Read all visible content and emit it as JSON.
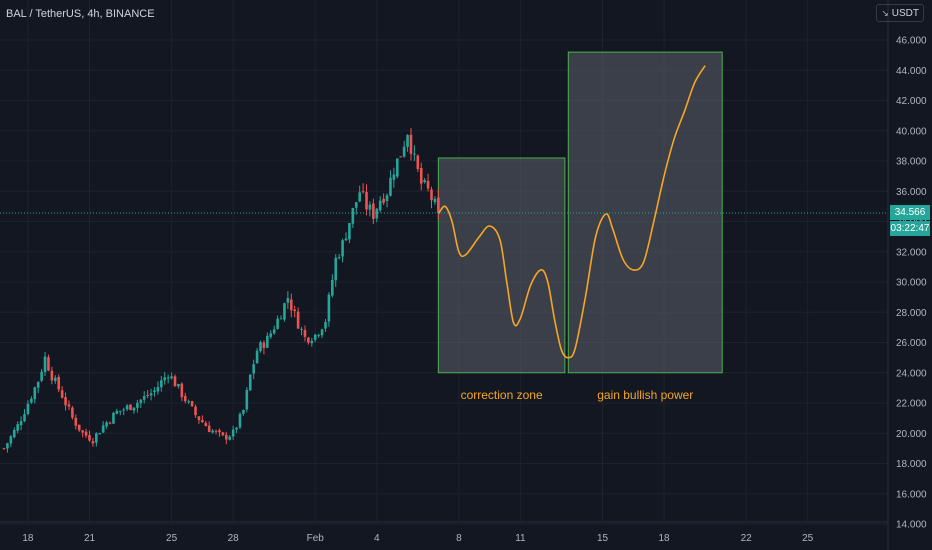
{
  "symbol": {
    "title": "BAL / TetherUS, 4h, BINANCE"
  },
  "currency": {
    "label": "USDT"
  },
  "last_price": {
    "value": "34.566",
    "countdown": "03:22:47"
  },
  "colors": {
    "background": "#131722",
    "grid": "#1e222d",
    "up_candle": "#26a69a",
    "down_candle": "#ef5350",
    "forecast_curve": "#f5a623",
    "zone_fill": "#5d606b",
    "zone_border": "#4caf50",
    "annotation_text": "#f5a623",
    "axis_text": "#b2b5be"
  },
  "chart_data": {
    "type": "candlestick",
    "title": "BAL / TetherUS, 4h, BINANCE",
    "xlabel": "",
    "ylabel": "",
    "ylim": [
      14,
      47
    ],
    "y_ticks": [
      "46.000",
      "44.000",
      "42.000",
      "40.000",
      "38.000",
      "36.000",
      "34.000",
      "32.000",
      "30.000",
      "28.000",
      "26.000",
      "24.000",
      "22.000",
      "20.000",
      "18.000",
      "16.000",
      "14.000"
    ],
    "y_tick_values": [
      46,
      44,
      42,
      40,
      38,
      36,
      34,
      32,
      30,
      28,
      26,
      24,
      22,
      20,
      18,
      16,
      14
    ],
    "x_domain": [
      0,
      220
    ],
    "x_ticks": [
      {
        "label": "18",
        "t": 7
      },
      {
        "label": "21",
        "t": 25
      },
      {
        "label": "25",
        "t": 49
      },
      {
        "label": "28",
        "t": 67
      },
      {
        "label": "Feb",
        "t": 91
      },
      {
        "label": "4",
        "t": 109
      },
      {
        "label": "8",
        "t": 133
      },
      {
        "label": "11",
        "t": 151
      },
      {
        "label": "15",
        "t": 175
      },
      {
        "label": "18",
        "t": 193
      },
      {
        "label": "22",
        "t": 217
      },
      {
        "label": "25",
        "t": 235
      }
    ],
    "ohlc_anchor_closes": [
      [
        0,
        19.0
      ],
      [
        4,
        20.5
      ],
      [
        7,
        22.0
      ],
      [
        10,
        23.5
      ],
      [
        12,
        25.0
      ],
      [
        14,
        23.8
      ],
      [
        17,
        22.5
      ],
      [
        20,
        21.0
      ],
      [
        23,
        20.0
      ],
      [
        26,
        19.6
      ],
      [
        29,
        20.5
      ],
      [
        33,
        21.4
      ],
      [
        38,
        21.9
      ],
      [
        44,
        22.8
      ],
      [
        48,
        24.0
      ],
      [
        52,
        22.6
      ],
      [
        56,
        21.2
      ],
      [
        60,
        20.3
      ],
      [
        64,
        19.7
      ],
      [
        67,
        20.0
      ],
      [
        70,
        21.5
      ],
      [
        72,
        23.8
      ],
      [
        74,
        25.5
      ],
      [
        77,
        26.2
      ],
      [
        80,
        27.5
      ],
      [
        83,
        29.0
      ],
      [
        85,
        27.8
      ],
      [
        88,
        26.3
      ],
      [
        91,
        26.5
      ],
      [
        94,
        27.5
      ],
      [
        97,
        31.5
      ],
      [
        99,
        32.5
      ],
      [
        101,
        34.0
      ],
      [
        104,
        36.0
      ],
      [
        106,
        35.0
      ],
      [
        108,
        34.5
      ],
      [
        110,
        35.5
      ],
      [
        112,
        36.0
      ],
      [
        114,
        37.5
      ],
      [
        116,
        38.5
      ],
      [
        118,
        40.0
      ],
      [
        120,
        38.0
      ],
      [
        122,
        36.5
      ],
      [
        124,
        36.0
      ],
      [
        127,
        34.566
      ]
    ],
    "last_price": 34.566,
    "zones": [
      {
        "label": "correction zone",
        "t_start": 127,
        "t_end": 164,
        "y_low": 24.0,
        "y_high": 38.2
      },
      {
        "label": "gain bullish power",
        "t_start": 165,
        "t_end": 210,
        "y_low": 24.0,
        "y_high": 45.2
      }
    ],
    "forecast_path": [
      [
        127,
        34.5
      ],
      [
        129,
        35.0
      ],
      [
        131,
        34.0
      ],
      [
        133,
        32.0
      ],
      [
        135,
        31.8
      ],
      [
        139,
        33.0
      ],
      [
        142,
        33.7
      ],
      [
        145,
        32.8
      ],
      [
        147,
        30.0
      ],
      [
        149,
        27.3
      ],
      [
        151,
        27.6
      ],
      [
        154,
        29.8
      ],
      [
        157,
        30.8
      ],
      [
        159,
        30.0
      ],
      [
        161,
        27.5
      ],
      [
        163,
        25.5
      ],
      [
        165,
        25.0
      ],
      [
        167,
        25.6
      ],
      [
        170,
        29.0
      ],
      [
        173,
        33.0
      ],
      [
        176,
        34.5
      ],
      [
        178,
        33.5
      ],
      [
        181,
        31.5
      ],
      [
        184,
        30.8
      ],
      [
        187,
        31.3
      ],
      [
        190,
        34.0
      ],
      [
        193,
        37.0
      ],
      [
        196,
        39.5
      ],
      [
        199,
        41.3
      ],
      [
        202,
        43.2
      ],
      [
        205,
        44.3
      ]
    ]
  }
}
